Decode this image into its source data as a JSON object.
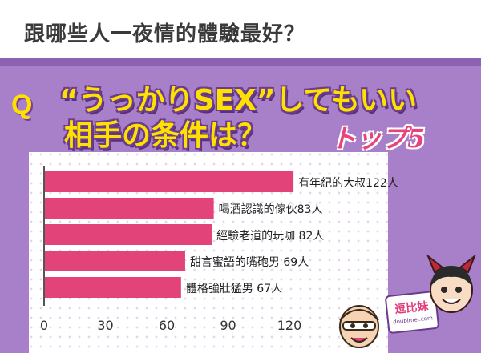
{
  "header": {
    "headline": "跟哪些人一夜情的體驗最好？"
  },
  "question": {
    "marker": "Q",
    "line1": "“うっかりSEX”してもいい",
    "line2": "相手の条件は？",
    "badge": "トップ5"
  },
  "logo": {
    "text": "逗比妹",
    "url": "doubimei.com"
  },
  "colors": {
    "bar": "#e2447a",
    "background": "#a87fc9",
    "panel": "#ffffff",
    "title_yellow": "#ffe100"
  },
  "chart_data": {
    "type": "bar",
    "orientation": "horizontal",
    "title": "",
    "xlabel": "",
    "ylabel": "",
    "categories": [
      "有年紀的大叔",
      "喝酒認識的傢伙",
      "經驗老道的玩咖",
      "甜言蜜語的嘴砲男",
      "體格強壯猛男"
    ],
    "values": [
      122,
      83,
      82,
      69,
      67
    ],
    "labels": [
      "有年紀的大叔122人",
      "喝酒認識的傢伙83人",
      "經驗老道的玩咖 82人",
      "甜言蜜語的嘴砲男 69人",
      "體格強壯猛男 67人"
    ],
    "xticks": [
      0,
      30,
      60,
      90,
      120
    ],
    "xlim": [
      0,
      150
    ],
    "grid": false
  }
}
